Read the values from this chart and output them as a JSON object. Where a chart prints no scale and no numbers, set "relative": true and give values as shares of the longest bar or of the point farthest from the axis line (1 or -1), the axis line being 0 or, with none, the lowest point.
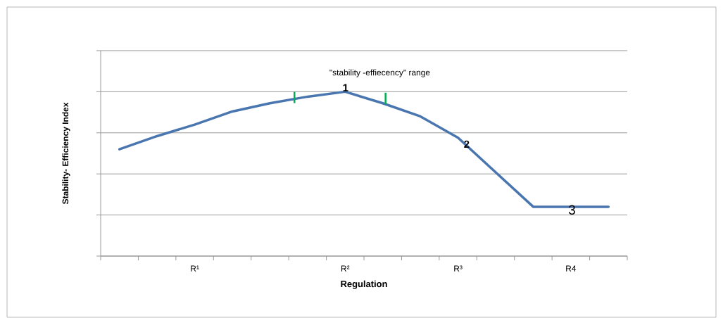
{
  "chart_data": {
    "type": "line",
    "relative": true,
    "xlabel": "Regulation",
    "ylabel": "Stability- Efficiency  Index",
    "categories": [
      null,
      null,
      "R¹",
      null,
      null,
      null,
      "R²",
      null,
      null,
      "R³",
      null,
      null,
      "R4",
      null
    ],
    "grid": "y",
    "tick_labels": "x",
    "series": [
      {
        "color": "#4a76b0",
        "values": [
          0.65,
          0.73,
          0.8,
          0.88,
          0.93,
          0.97,
          1,
          0.93,
          0.85,
          0.72,
          0.51,
          0.3,
          0.3,
          0.3
        ]
      }
    ],
    "annotations": [
      "\"stability -effiecency\" range",
      "1",
      "2",
      "3"
    ]
  }
}
